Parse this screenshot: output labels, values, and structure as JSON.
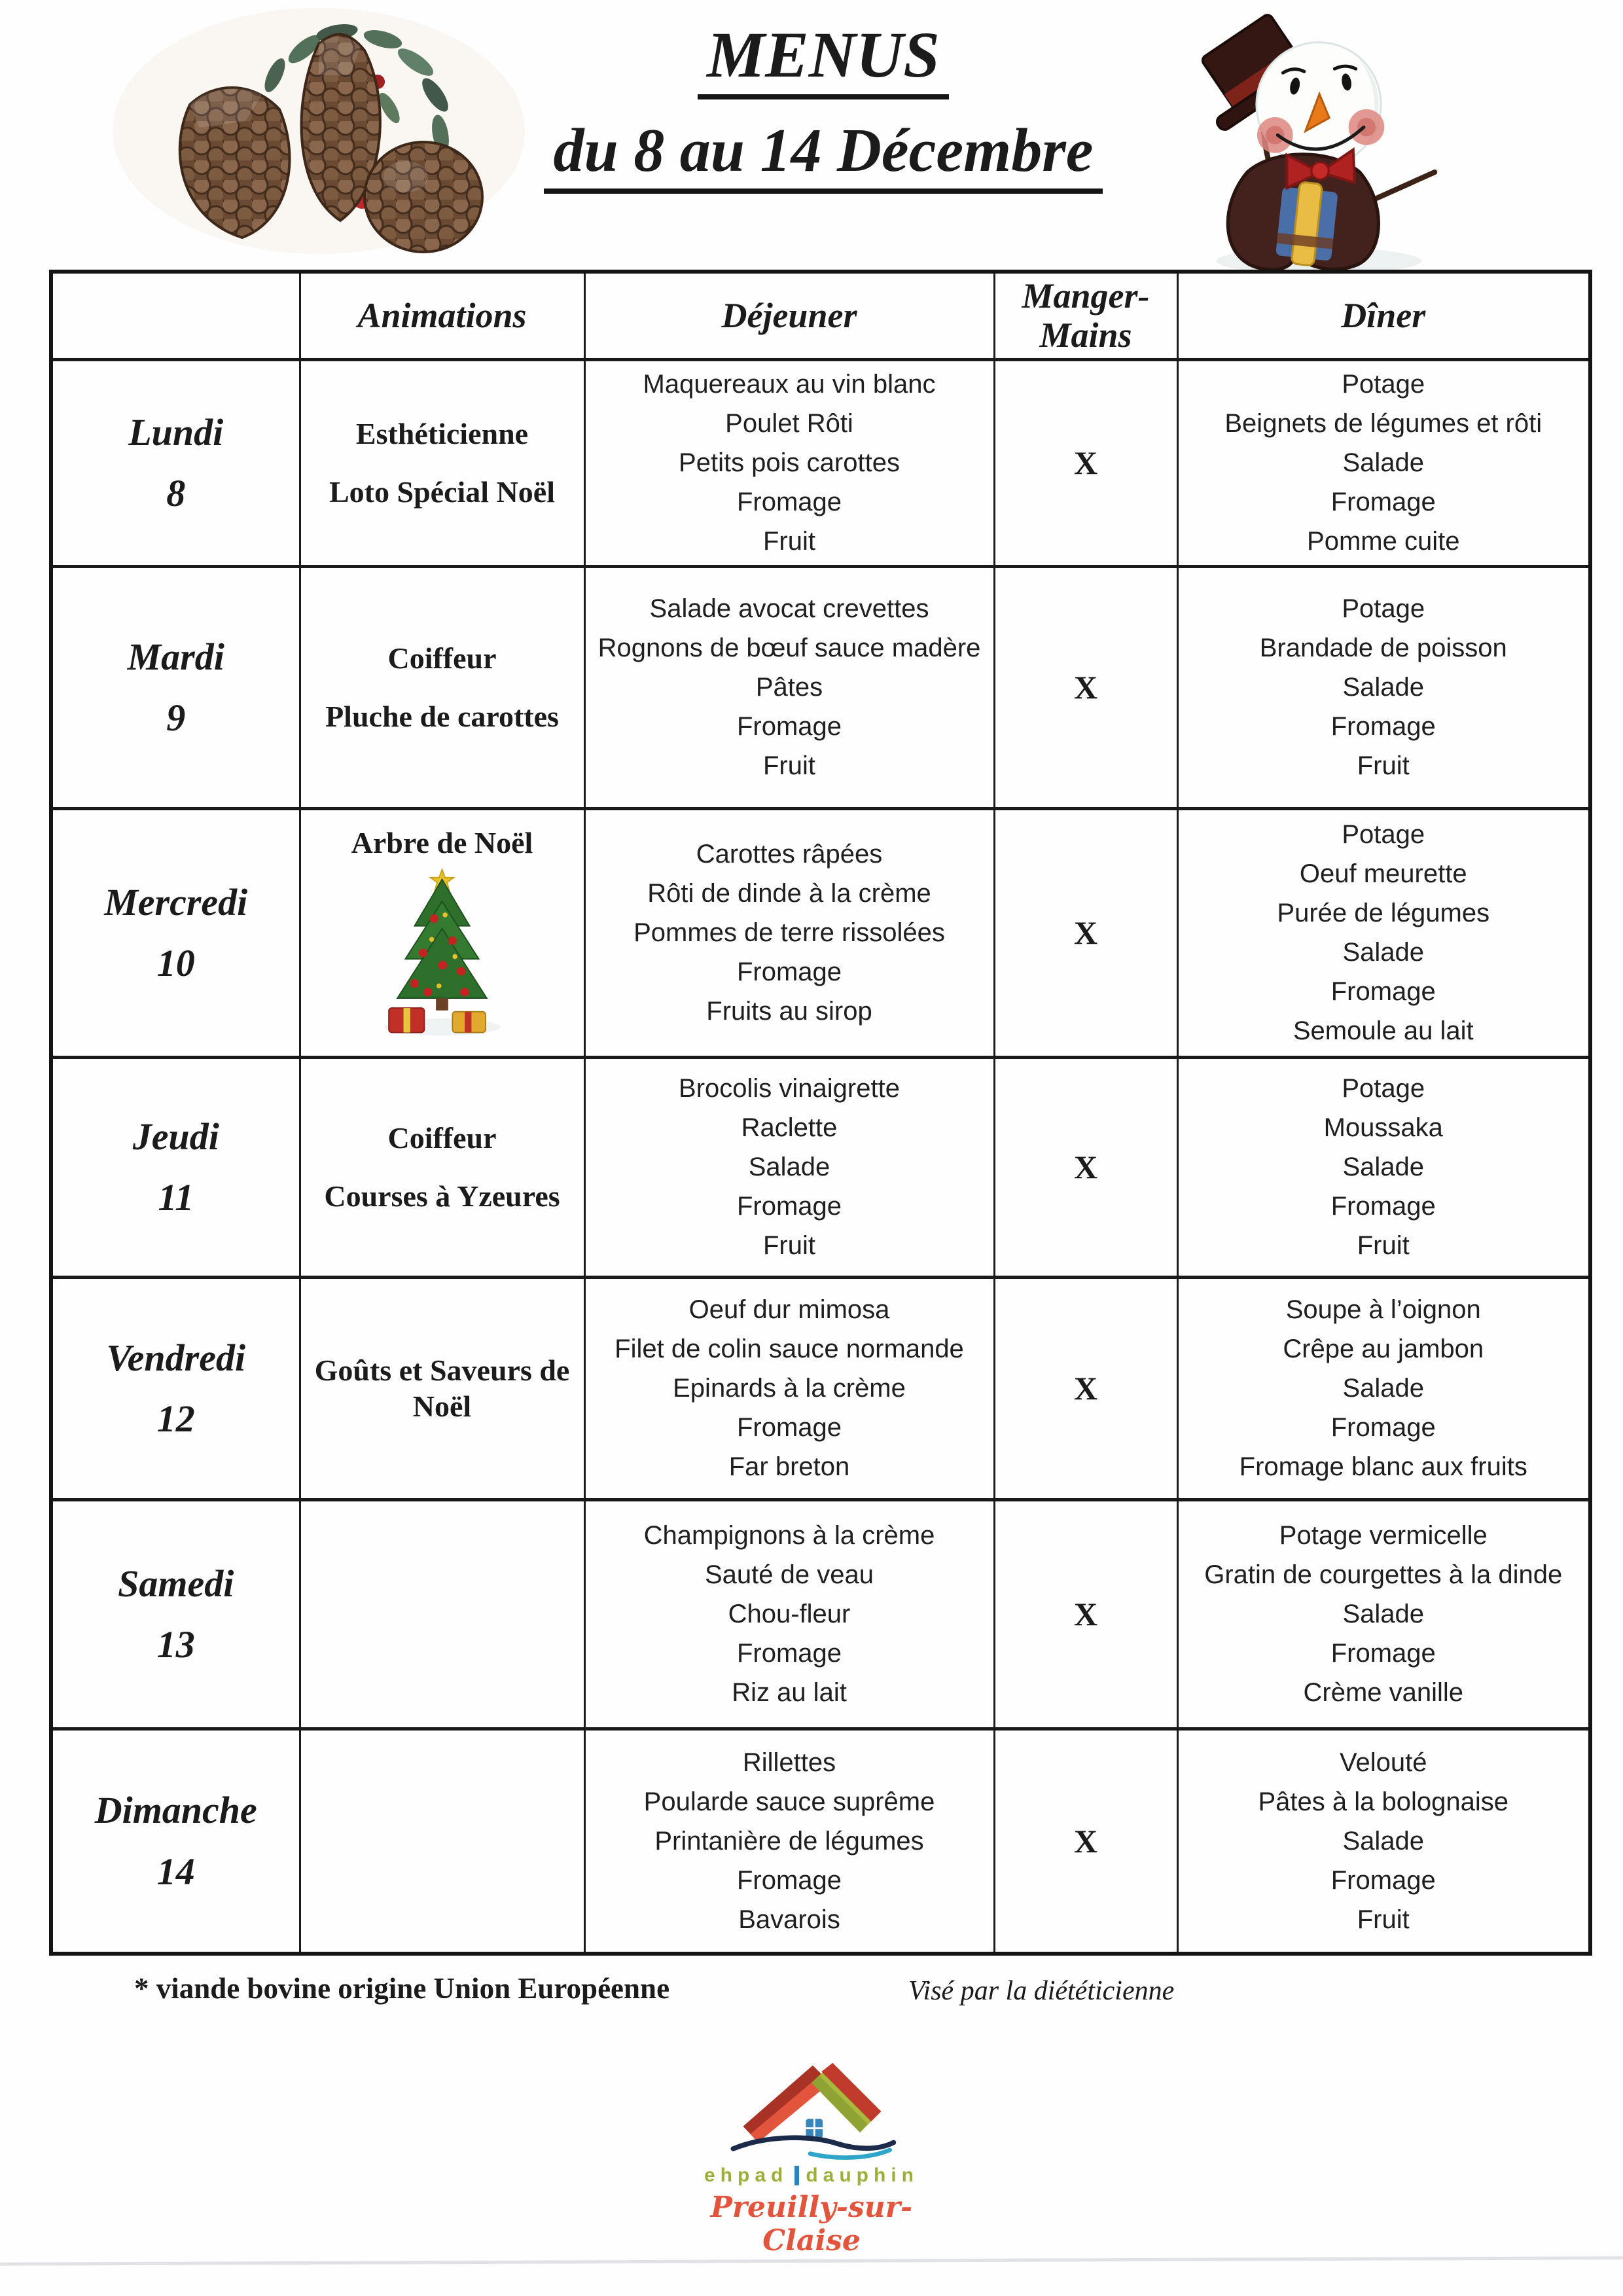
{
  "title": {
    "line1": "MENUS",
    "line2": "du 8 au 14 Décembre"
  },
  "table": {
    "headers": {
      "day": "",
      "animations": "Animations",
      "dejeuner": "Déjeuner",
      "manger_mains": "Manger-Mains",
      "diner": "Dîner"
    },
    "rows": [
      {
        "day": "Lundi",
        "date": "8",
        "animations": [
          "Esthéticienne",
          "Loto Spécial Noël"
        ],
        "dejeuner": [
          "Maquereaux au vin blanc",
          "Poulet Rôti",
          "Petits pois carottes",
          "Fromage",
          "Fruit"
        ],
        "manger_mains": "X",
        "diner": [
          "Potage",
          "Beignets de légumes et rôti",
          "Salade",
          "Fromage",
          "Pomme cuite"
        ],
        "tree": false
      },
      {
        "day": "Mardi",
        "date": "9",
        "animations": [
          "Coiffeur",
          "Pluche de carottes"
        ],
        "dejeuner": [
          "Salade avocat crevettes",
          "Rognons de bœuf sauce madère",
          "Pâtes",
          "Fromage",
          "Fruit"
        ],
        "manger_mains": "X",
        "diner": [
          "Potage",
          "Brandade de poisson",
          "Salade",
          "Fromage",
          "Fruit"
        ],
        "tree": false
      },
      {
        "day": "Mercredi",
        "date": "10",
        "animations": [
          "Arbre de Noël"
        ],
        "dejeuner": [
          "Carottes râpées",
          "Rôti de dinde à la crème",
          "Pommes de terre rissolées",
          "Fromage",
          "Fruits au sirop"
        ],
        "manger_mains": "X",
        "diner": [
          "Potage",
          "Oeuf meurette",
          "Purée de légumes",
          "Salade",
          "Fromage",
          "Semoule au lait"
        ],
        "tree": true
      },
      {
        "day": "Jeudi",
        "date": "11",
        "animations": [
          "Coiffeur",
          "Courses à Yzeures"
        ],
        "dejeuner": [
          "Brocolis vinaigrette",
          "Raclette",
          "Salade",
          "Fromage",
          "Fruit"
        ],
        "manger_mains": "X",
        "diner": [
          "Potage",
          "Moussaka",
          "Salade",
          "Fromage",
          "Fruit"
        ],
        "tree": false
      },
      {
        "day": "Vendredi",
        "date": "12",
        "animations": [
          "Goûts et Saveurs de Noël"
        ],
        "dejeuner": [
          "Oeuf dur mimosa",
          "Filet de colin sauce normande",
          "Epinards à la crème",
          "Fromage",
          "Far breton"
        ],
        "manger_mains": "X",
        "diner": [
          "Soupe à l’oignon",
          "Crêpe au jambon",
          "Salade",
          "Fromage",
          "Fromage blanc aux fruits"
        ],
        "tree": false
      },
      {
        "day": "Samedi",
        "date": "13",
        "animations": [],
        "dejeuner": [
          "Champignons à la crème",
          "Sauté de veau",
          "Chou-fleur",
          "Fromage",
          "Riz au lait"
        ],
        "manger_mains": "X",
        "diner": [
          "Potage vermicelle",
          "Gratin de courgettes à la dinde",
          "Salade",
          "Fromage",
          "Crème vanille"
        ],
        "tree": false
      },
      {
        "day": "Dimanche",
        "date": "14",
        "animations": [],
        "dejeuner": [
          "Rillettes",
          "Poularde sauce suprême",
          "Printanière de légumes",
          "Fromage",
          "Bavarois"
        ],
        "manger_mains": "X",
        "diner": [
          "Velouté",
          "Pâtes à la bolognaise",
          "Salade",
          "Fromage",
          "Fruit"
        ],
        "tree": false
      }
    ]
  },
  "footer": {
    "note": "* viande bovine origine Union Européenne",
    "signature": "Visé par la diététicienne"
  },
  "logo": {
    "brand_left": "ehpad",
    "brand_right": "dauphin",
    "town": "Preuilly-sur-Claise",
    "colors": {
      "roof_orange": "#e2543c",
      "roof_dark_red": "#a93226",
      "roof_green": "#a9b93e",
      "roof_olive": "#8fa234",
      "window_blue": "#3a86b8",
      "wave_navy": "#1c2b4a",
      "wave_light_blue": "#2fa5c9",
      "brand_green": "#9fae38",
      "bar_blue": "#2f83bd",
      "town_orange": "#e2543c"
    }
  },
  "images": {
    "top_left": "pine-cones-holly-berries",
    "top_right": "snowman-tipping-hat",
    "mercredi_cell": "christmas-tree-with-gifts"
  }
}
